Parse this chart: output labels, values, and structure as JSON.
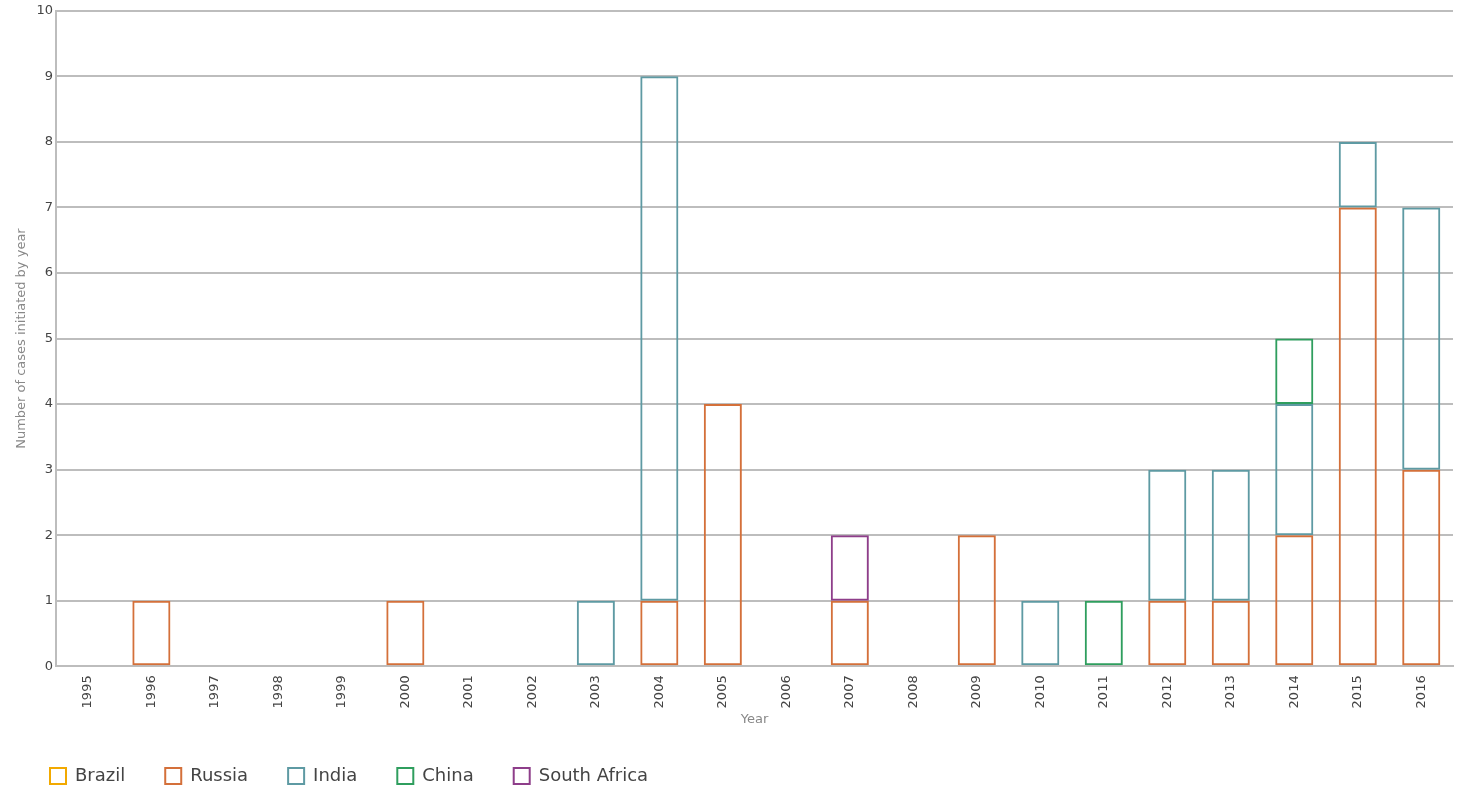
{
  "chart_data": {
    "type": "bar",
    "stacked": true,
    "xlabel": "Year",
    "ylabel": "Number of cases initiated by year",
    "categories": [
      "1995",
      "1996",
      "1997",
      "1998",
      "1999",
      "2000",
      "2001",
      "2002",
      "2003",
      "2004",
      "2005",
      "2006",
      "2007",
      "2008",
      "2009",
      "2010",
      "2011",
      "2012",
      "2013",
      "2014",
      "2015",
      "2016"
    ],
    "series": [
      {
        "name": "Brazil",
        "color": "#f2a900",
        "values": [
          null,
          null,
          null,
          null,
          null,
          null,
          null,
          null,
          null,
          null,
          null,
          null,
          null,
          null,
          null,
          null,
          null,
          null,
          null,
          null,
          null,
          null
        ]
      },
      {
        "name": "Russia",
        "color": "#d4703a",
        "values": [
          null,
          1,
          null,
          null,
          null,
          1,
          null,
          null,
          null,
          1,
          4,
          null,
          1,
          null,
          2,
          null,
          null,
          1,
          1,
          2,
          7,
          3
        ]
      },
      {
        "name": "India",
        "color": "#5e9aa3",
        "values": [
          null,
          null,
          null,
          null,
          null,
          null,
          null,
          null,
          1,
          8,
          null,
          null,
          null,
          null,
          null,
          1,
          null,
          2,
          2,
          2,
          1,
          4
        ]
      },
      {
        "name": "China",
        "color": "#2f9e5e",
        "values": [
          null,
          null,
          null,
          null,
          null,
          null,
          null,
          null,
          null,
          null,
          null,
          null,
          null,
          null,
          null,
          null,
          1,
          null,
          null,
          1,
          null,
          null
        ]
      },
      {
        "name": "South Africa",
        "color": "#8e3e8a",
        "values": [
          null,
          null,
          null,
          null,
          null,
          null,
          null,
          null,
          null,
          null,
          null,
          null,
          1,
          null,
          null,
          null,
          null,
          null,
          null,
          null,
          null,
          null
        ]
      }
    ],
    "ylim": [
      0,
      10
    ],
    "yticks": [
      0,
      1,
      2,
      3,
      4,
      5,
      6,
      7,
      8,
      9,
      10
    ],
    "grid": "y",
    "legend": "bottom left"
  }
}
